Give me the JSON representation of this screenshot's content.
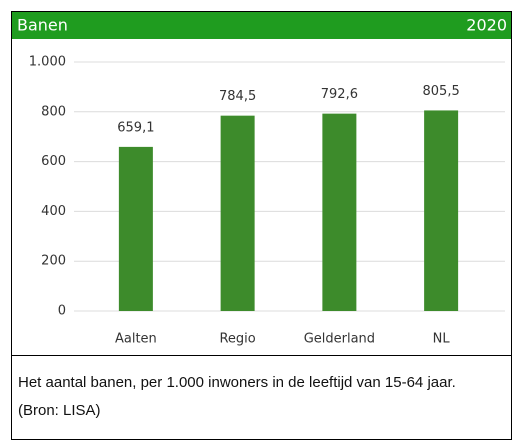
{
  "chart_data": {
    "type": "bar",
    "title": "Banen",
    "subtitle": "2020",
    "categories": [
      "Aalten",
      "Regio",
      "Gelderland",
      "NL"
    ],
    "values": [
      659.1,
      784.5,
      792.6,
      805.5
    ],
    "value_labels": [
      "659,1",
      "784,5",
      "792,6",
      "805,5"
    ],
    "color": "#3d8b2b",
    "ylim": [
      0,
      1000
    ],
    "yticks": [
      0,
      200,
      400,
      600,
      800,
      {
        "value": 1000,
        "label": "1.000"
      }
    ],
    "grid": true,
    "caption": "Het aantal banen, per 1.000 inwoners in de leeftijd van 15-64 jaar. (Bron: LISA)"
  }
}
